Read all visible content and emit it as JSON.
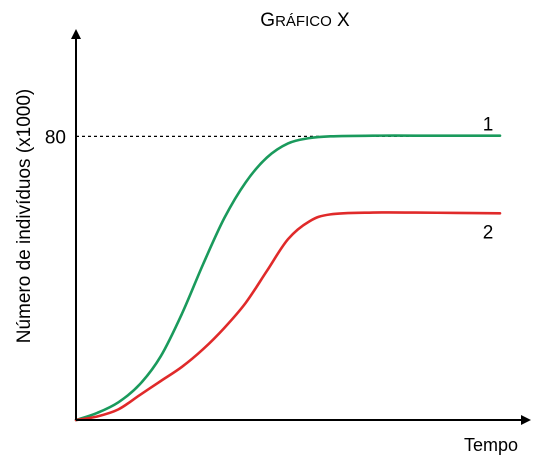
{
  "chart_data": {
    "type": "line",
    "title_parts": [
      {
        "text": "G",
        "size": "big"
      },
      {
        "text": "RÁFICO",
        "size": "small"
      },
      {
        "text": " X",
        "size": "big"
      }
    ],
    "xlabel": "Tempo",
    "ylabel": "Número de indivíduos (x1000)",
    "ylim": [
      0,
      110
    ],
    "xlim": [
      0,
      10
    ],
    "y_ticks": [
      80
    ],
    "reference_line": {
      "y": 80,
      "style": "dashed"
    },
    "series": [
      {
        "name": "1",
        "color": "#1a9a5c",
        "x": [
          0,
          0.5,
          1,
          1.5,
          2,
          2.5,
          3,
          3.5,
          4,
          4.5,
          5,
          5.5,
          6,
          7,
          8,
          9,
          10
        ],
        "y": [
          0,
          2,
          5,
          10,
          18,
          30,
          44,
          57,
          67,
          74,
          78,
          79.5,
          80,
          80.2,
          80.2,
          80.2,
          80.2
        ]
      },
      {
        "name": "2",
        "color": "#e02a2a",
        "x": [
          0,
          0.5,
          1,
          1.5,
          2,
          2.5,
          3,
          3.5,
          4,
          4.5,
          5,
          5.5,
          6,
          7,
          8,
          9,
          10
        ],
        "y": [
          0,
          1,
          3,
          7,
          11,
          15,
          20,
          26,
          33,
          42,
          51,
          56,
          58,
          58.5,
          58.5,
          58.4,
          58.3
        ]
      }
    ]
  }
}
